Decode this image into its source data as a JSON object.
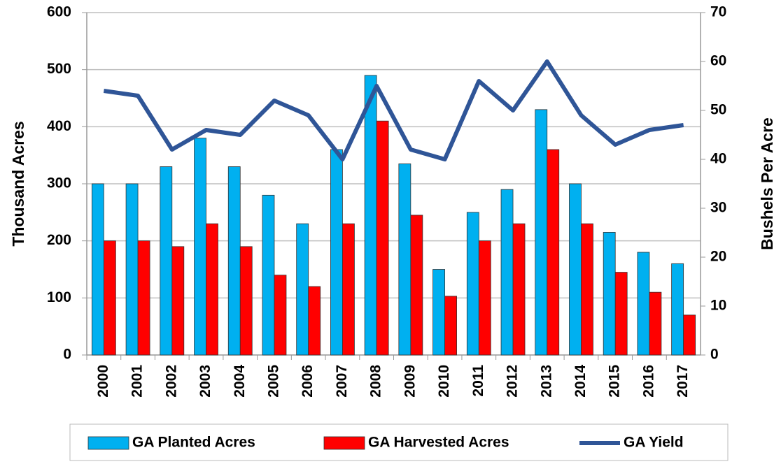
{
  "chart_data": {
    "type": "bar-line",
    "categories": [
      "2000",
      "2001",
      "2002",
      "2003",
      "2004",
      "2005",
      "2006",
      "2007",
      "2008",
      "2009",
      "2010",
      "2011",
      "2012",
      "2013",
      "2014",
      "2015",
      "2016",
      "2017"
    ],
    "series": [
      {
        "name": "GA Planted Acres",
        "type": "bar",
        "color": "#00b0f0",
        "values": [
          300,
          300,
          330,
          380,
          330,
          280,
          230,
          360,
          490,
          335,
          150,
          250,
          290,
          430,
          300,
          215,
          180,
          160
        ]
      },
      {
        "name": "GA Harvested Acres",
        "type": "bar",
        "color": "#ff0000",
        "values": [
          200,
          200,
          190,
          230,
          190,
          140,
          120,
          230,
          410,
          245,
          103,
          200,
          230,
          360,
          230,
          145,
          110,
          70
        ]
      },
      {
        "name": "GA Yield",
        "type": "line",
        "axis": "y2",
        "color": "#2f5597",
        "values": [
          54,
          53,
          42,
          46,
          45,
          52,
          49,
          40,
          55,
          42,
          40,
          56,
          50,
          60,
          49,
          43,
          46,
          47
        ]
      }
    ],
    "y_label": "Thousand Acres",
    "y2_label": "Bushels Per Acre",
    "ylim": [
      0,
      600
    ],
    "yticks": [
      0,
      100,
      200,
      300,
      400,
      500,
      600
    ],
    "y2lim": [
      0,
      70
    ],
    "y2ticks": [
      0,
      10,
      20,
      30,
      40,
      50,
      60,
      70
    ],
    "grid": true,
    "legend": "bottom"
  }
}
